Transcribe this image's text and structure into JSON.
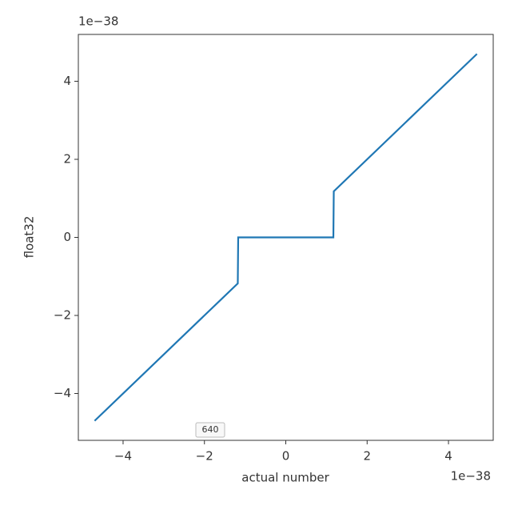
{
  "chart_data": {
    "type": "line",
    "x_label": "actual number",
    "y_label": "float32",
    "x_offset_label": "1e−38",
    "y_offset_label": "1e−38",
    "annotation": "640",
    "x": [
      -4.7,
      -1.18,
      -1.17,
      1.17,
      1.18,
      4.7
    ],
    "series": [
      {
        "name": "float32",
        "color": "#1f77b4",
        "values": [
          -4.7,
          -1.18,
          0,
          0,
          1.18,
          4.7
        ]
      }
    ],
    "xlim": [
      -5.1,
      5.1
    ],
    "ylim": [
      -5.2,
      5.2
    ],
    "xticks": [
      {
        "value": -4,
        "label": "−4"
      },
      {
        "value": -2,
        "label": "−2"
      },
      0,
      2,
      4
    ],
    "yticks": [
      {
        "value": -4,
        "label": "−4"
      },
      {
        "value": -2,
        "label": "−2"
      },
      0,
      2,
      4
    ],
    "grid": false
  }
}
